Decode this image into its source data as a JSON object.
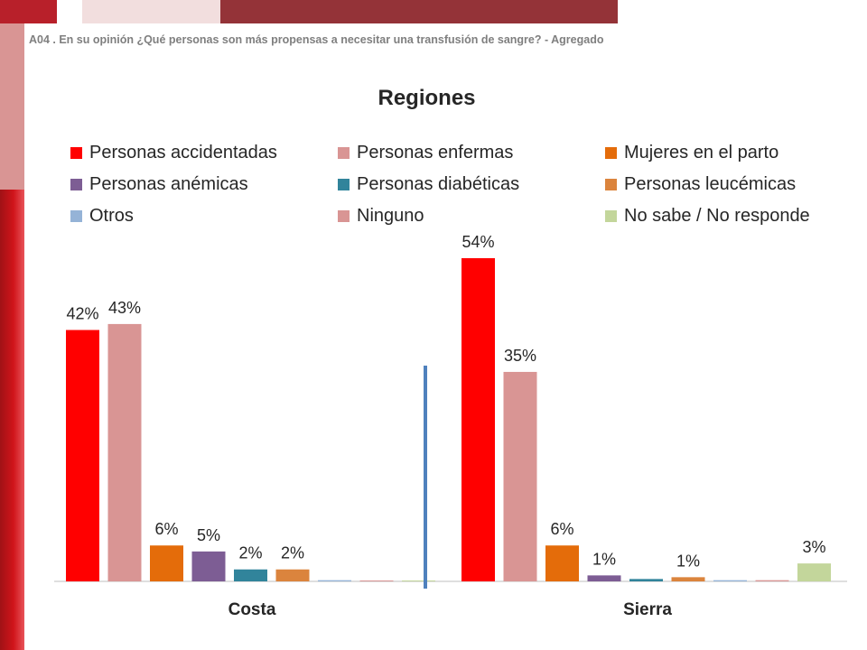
{
  "header": {
    "subtitle": "A04 . En su opinión ¿Qué personas son más propensas a necesitar una transfusión de sangre? - Agregado"
  },
  "chart_data": {
    "type": "bar",
    "title": "Regiones",
    "xlabel": "",
    "ylabel": "",
    "ylim": [
      0,
      60
    ],
    "grid": false,
    "legend_position": "top",
    "categories": [
      "Costa",
      "Sierra"
    ],
    "series": [
      {
        "name": "Personas accidentadas",
        "color": "#ff0000",
        "values": [
          42,
          54
        ],
        "labels": [
          "42%",
          "54%"
        ]
      },
      {
        "name": "Personas enfermas",
        "color": "#d99594",
        "values": [
          43,
          35
        ],
        "labels": [
          "43%",
          "35%"
        ]
      },
      {
        "name": "Mujeres en el parto",
        "color": "#e46c0a",
        "values": [
          6,
          6
        ],
        "labels": [
          "6%",
          "6%"
        ]
      },
      {
        "name": "Personas anémicas",
        "color": "#7d5d94",
        "values": [
          5,
          1
        ],
        "labels": [
          "5%",
          "1%"
        ]
      },
      {
        "name": "Personas diabéticas",
        "color": "#31849b",
        "values": [
          2,
          0.4
        ],
        "labels": [
          "2%",
          ""
        ]
      },
      {
        "name": "Personas leucémicas",
        "color": "#db843d",
        "values": [
          2,
          0.7
        ],
        "labels": [
          "2%",
          "1%"
        ]
      },
      {
        "name": "Otros",
        "color": "#95b3d7",
        "values": [
          0.2,
          0.2
        ],
        "labels": [
          "",
          ""
        ]
      },
      {
        "name": "Ninguno",
        "color": "#d99594",
        "values": [
          0.1,
          0.2
        ],
        "labels": [
          "",
          ""
        ]
      },
      {
        "name": "No sabe / No responde",
        "color": "#c3d69b",
        "values": [
          0,
          3
        ],
        "labels": [
          "",
          "3%"
        ]
      }
    ],
    "divider_color": "#4f81bd"
  }
}
